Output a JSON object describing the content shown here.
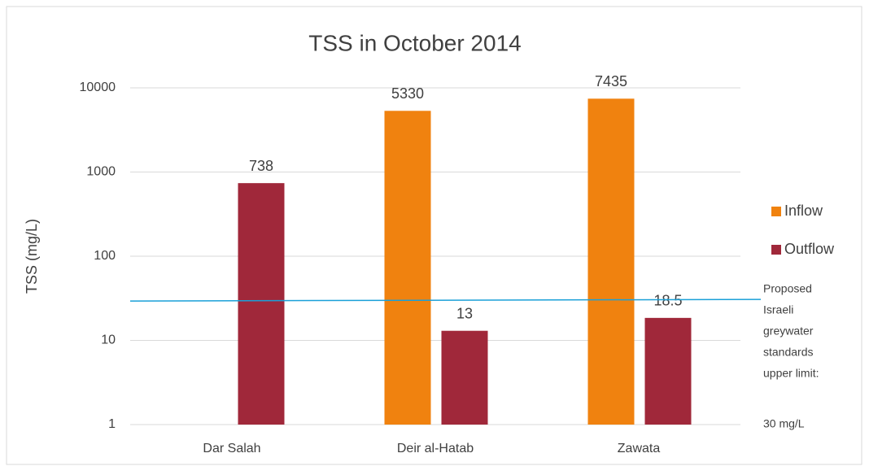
{
  "chart_data": {
    "type": "bar",
    "title": "TSS in October 2014",
    "y_label": "TSS (mg/L)",
    "categories": [
      "Dar Salah",
      "Deir al-Hatab",
      "Zawata"
    ],
    "series": [
      {
        "name": "Inflow",
        "color": "#f0820f",
        "values": [
          null,
          5330,
          7435
        ]
      },
      {
        "name": "Outflow",
        "color": "#a0283a",
        "values": [
          738,
          13,
          18.5
        ]
      }
    ],
    "ylim": [
      1,
      10000
    ],
    "yticks": [
      1,
      10,
      100,
      1000,
      10000
    ],
    "log_scale": true,
    "grid": true,
    "legend": "right",
    "reference_line": {
      "value": 30,
      "color": "#1aa0d8"
    },
    "annotation": [
      "Proposed",
      "Israeli",
      "greywater",
      "standards",
      "upper limit:",
      "30 mg/L"
    ]
  }
}
